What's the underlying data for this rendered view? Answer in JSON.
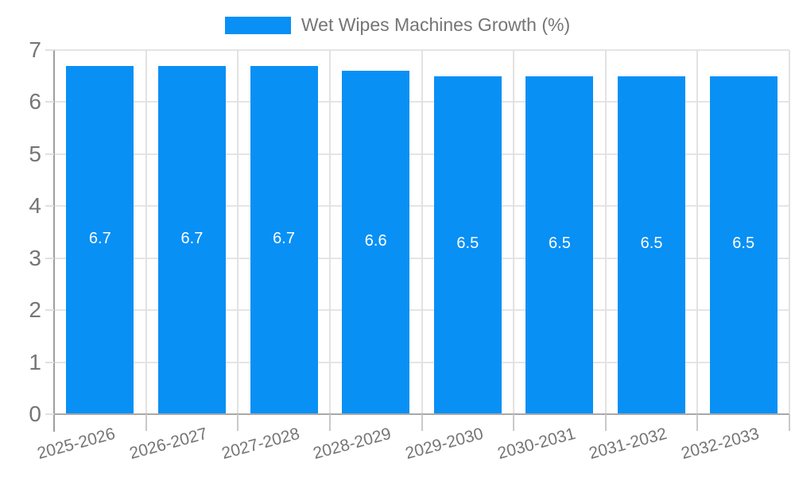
{
  "legend": {
    "label": "Wet Wipes Machines Growth (%)"
  },
  "colors": {
    "bar": "#0990f5",
    "data_label": "#ffffff",
    "tick_text": "#757575",
    "gridline": "#e5e5e5",
    "axis_line": "#9e9e9e"
  },
  "chart_data": {
    "type": "bar",
    "title": "",
    "legend_entries": [
      "Wet Wipes Machines Growth (%)"
    ],
    "legend_position": "top-center",
    "categories": [
      "2025-2026",
      "2026-2027",
      "2027-2028",
      "2028-2029",
      "2029-2030",
      "2030-2031",
      "2031-2032",
      "2032-2033"
    ],
    "series": [
      {
        "name": "Wet Wipes Machines Growth (%)",
        "values": [
          6.7,
          6.7,
          6.7,
          6.6,
          6.5,
          6.5,
          6.5,
          6.5
        ],
        "data_labels": [
          "6.7",
          "6.7",
          "6.7",
          "6.6",
          "6.5",
          "6.5",
          "6.5",
          "6.5"
        ]
      }
    ],
    "xlabel": "",
    "ylabel": "",
    "ylim": [
      0,
      7
    ],
    "yticks": [
      0,
      1,
      2,
      3,
      4,
      5,
      6,
      7
    ],
    "grid": true,
    "x_tick_rotation_deg": -15,
    "bar_color": "#0990f5"
  }
}
